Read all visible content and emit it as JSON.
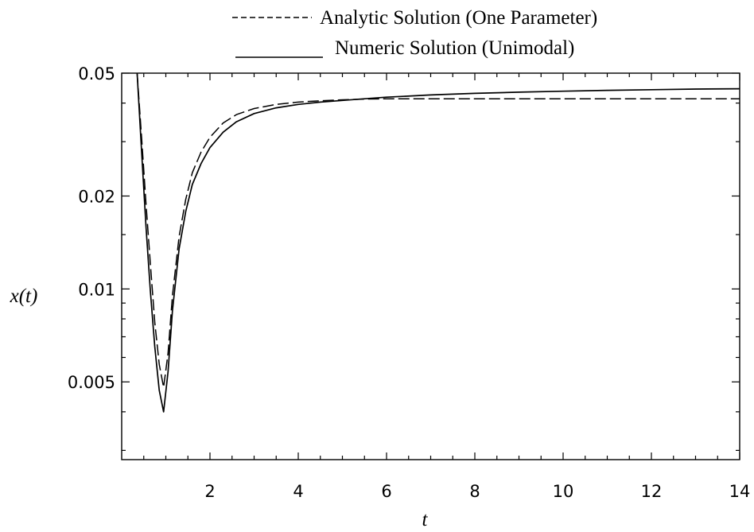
{
  "chart_data": {
    "type": "line",
    "title": "",
    "xlabel": "t",
    "ylabel": "x(t)",
    "x_scale": "linear",
    "y_scale": "log",
    "xlim": [
      0,
      14
    ],
    "ylim": [
      0.0028,
      0.05
    ],
    "x_ticks": [
      2,
      4,
      6,
      8,
      10,
      12,
      14
    ],
    "x_tick_labels": [
      "2",
      "4",
      "6",
      "8",
      "10",
      "12",
      "14"
    ],
    "y_ticks": [
      0.005,
      0.01,
      0.02,
      0.05
    ],
    "y_tick_labels": [
      "0.005",
      "0.01",
      "0.02",
      "0.05"
    ],
    "grid": false,
    "legend_position": "top",
    "series": [
      {
        "name": "Analytic Solution (One Parameter)",
        "style": "dashed",
        "x": [
          0.35,
          0.45,
          0.55,
          0.65,
          0.75,
          0.85,
          0.95,
          1.05,
          1.15,
          1.3,
          1.45,
          1.6,
          1.8,
          2.0,
          2.3,
          2.6,
          3.0,
          3.5,
          4.0,
          4.5,
          5.0,
          5.5,
          6.0,
          7.0,
          8.0,
          9.0,
          10.0,
          11.0,
          12.0,
          13.0,
          14.0
        ],
        "y": [
          0.05,
          0.031,
          0.019,
          0.012,
          0.0078,
          0.0057,
          0.0048,
          0.0062,
          0.0095,
          0.0148,
          0.0195,
          0.0238,
          0.0278,
          0.031,
          0.0345,
          0.0367,
          0.0384,
          0.0396,
          0.0403,
          0.0407,
          0.041,
          0.0412,
          0.0413,
          0.0413,
          0.0413,
          0.0413,
          0.0413,
          0.0413,
          0.0413,
          0.0413,
          0.0413
        ]
      },
      {
        "name": "Numeric Solution (Unimodal)",
        "style": "solid",
        "x": [
          0.35,
          0.45,
          0.55,
          0.65,
          0.75,
          0.85,
          0.95,
          1.05,
          1.15,
          1.3,
          1.45,
          1.6,
          1.8,
          2.0,
          2.3,
          2.6,
          3.0,
          3.5,
          4.0,
          4.5,
          5.0,
          5.5,
          6.0,
          7.0,
          8.0,
          9.0,
          10.0,
          11.0,
          12.0,
          13.0,
          14.0
        ],
        "y": [
          0.05,
          0.028,
          0.016,
          0.0098,
          0.0065,
          0.0047,
          0.004,
          0.0054,
          0.0085,
          0.0135,
          0.0178,
          0.0218,
          0.0255,
          0.0287,
          0.0322,
          0.0348,
          0.037,
          0.0386,
          0.0396,
          0.0403,
          0.0408,
          0.0413,
          0.0418,
          0.0425,
          0.043,
          0.0434,
          0.0437,
          0.044,
          0.0442,
          0.0444,
          0.0445
        ]
      }
    ]
  }
}
